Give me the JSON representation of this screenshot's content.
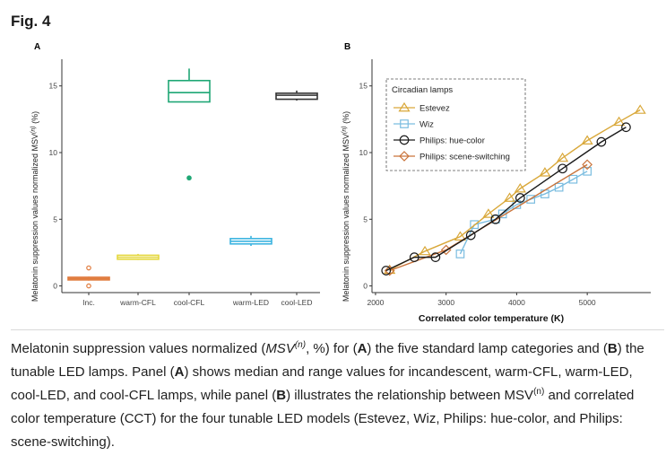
{
  "figure_label": "Fig. 4",
  "chart_data": [
    {
      "type": "box",
      "panel": "A",
      "ylabel": "Melatonin suppression values normalized MSV",
      "ylabel_sup": "(n)",
      "ylabel_unit": " (%)",
      "ylim": [
        -0.5,
        17
      ],
      "yticks": [
        0,
        5,
        10,
        15
      ],
      "xlabel": "",
      "categories": [
        "Inc.",
        "warm-CFL",
        "cool-CFL",
        "warm-LED",
        "cool-LED"
      ],
      "boxes": [
        {
          "category": "Inc.",
          "color": "#e07a3c",
          "q1": 0.45,
          "median": 0.55,
          "q3": 0.65,
          "whisker_low": 0.4,
          "whisker_high": 0.7,
          "outliers": [
            1.35,
            0.0
          ],
          "outlier_filled": false
        },
        {
          "category": "warm-CFL",
          "color": "#e5d840",
          "q1": 2.0,
          "median": 2.15,
          "q3": 2.3,
          "whisker_low": 1.95,
          "whisker_high": 2.4,
          "outliers": [],
          "outlier_filled": false
        },
        {
          "category": "cool-CFL",
          "color": "#1fa775",
          "q1": 13.8,
          "median": 14.5,
          "q3": 15.4,
          "whisker_low": 13.8,
          "whisker_high": 16.3,
          "outliers": [
            8.1
          ],
          "outlier_filled": true
        },
        {
          "category": "warm-LED",
          "color": "#3cb4e0",
          "q1": 3.15,
          "median": 3.35,
          "q3": 3.55,
          "whisker_low": 3.0,
          "whisker_high": 3.75,
          "outliers": [],
          "outlier_filled": false
        },
        {
          "category": "cool-LED",
          "color": "#333333",
          "q1": 14.0,
          "median": 14.3,
          "q3": 14.45,
          "whisker_low": 13.9,
          "whisker_high": 14.65,
          "outliers": [],
          "outlier_filled": false
        }
      ]
    },
    {
      "type": "line",
      "panel": "B",
      "xlabel": "Correlated color temperature (K)",
      "ylabel": "Melatonin suppression values normalized MSV",
      "ylabel_sup": "(n)",
      "ylabel_unit": " (%)",
      "xlim": [
        1950,
        5900
      ],
      "ylim": [
        -0.5,
        17
      ],
      "xticks": [
        2000,
        3000,
        4000,
        5000
      ],
      "yticks": [
        0,
        5,
        10,
        15
      ],
      "legend_title": "Circadian lamps",
      "legend_position": "top-left",
      "series": [
        {
          "name": "Estevez",
          "color": "#d9a83a",
          "marker": "triangle",
          "x": [
            2200,
            2700,
            3200,
            3600,
            3900,
            4050,
            4400,
            4650,
            5000,
            5450,
            5750
          ],
          "y": [
            1.2,
            2.6,
            3.7,
            5.4,
            6.6,
            7.3,
            8.5,
            9.6,
            10.9,
            12.3,
            13.2
          ]
        },
        {
          "name": "Wiz",
          "color": "#7bbde0",
          "marker": "square",
          "x": [
            3200,
            3400,
            3700,
            3800,
            4000,
            4200,
            4400,
            4600,
            4800,
            5000
          ],
          "y": [
            2.4,
            4.6,
            5.0,
            5.4,
            6.1,
            6.5,
            6.9,
            7.4,
            8.0,
            8.6
          ]
        },
        {
          "name": "Philips: hue-color",
          "color": "#1a1a1a",
          "marker": "circle",
          "x": [
            2150,
            2550,
            2850,
            3350,
            3700,
            4050,
            4650,
            5200,
            5550
          ],
          "y": [
            1.15,
            2.15,
            2.15,
            3.8,
            5.0,
            6.6,
            8.8,
            10.8,
            11.9
          ]
        },
        {
          "name": "Philips: scene-switching",
          "color": "#c9733a",
          "marker": "diamond",
          "x": [
            2200,
            3000,
            5000
          ],
          "y": [
            1.15,
            2.7,
            9.1
          ]
        }
      ]
    }
  ],
  "caption": {
    "p1": "Melatonin suppression values normalized (",
    "msv": "MSV",
    "sup_n": "(n)",
    "p2": ", %) for (",
    "A1": "A",
    "p3": ") the five standard lamp categories and (",
    "B1": "B",
    "p4": ") the tunable LED lamps. Panel (",
    "A2": "A",
    "p5": ") shows median and range values for incandescent, warm-CFL, warm-LED, cool-LED, and cool-CFL lamps, while panel (",
    "B2": "B",
    "p6": ") illustrates the relationship between MSV",
    "sup_n2": "(n)",
    "p7": " and correlated color temperature (CCT) for the four tunable LED models (Estevez, Wiz, Philips: hue-color, and Philips: scene-switching)."
  }
}
